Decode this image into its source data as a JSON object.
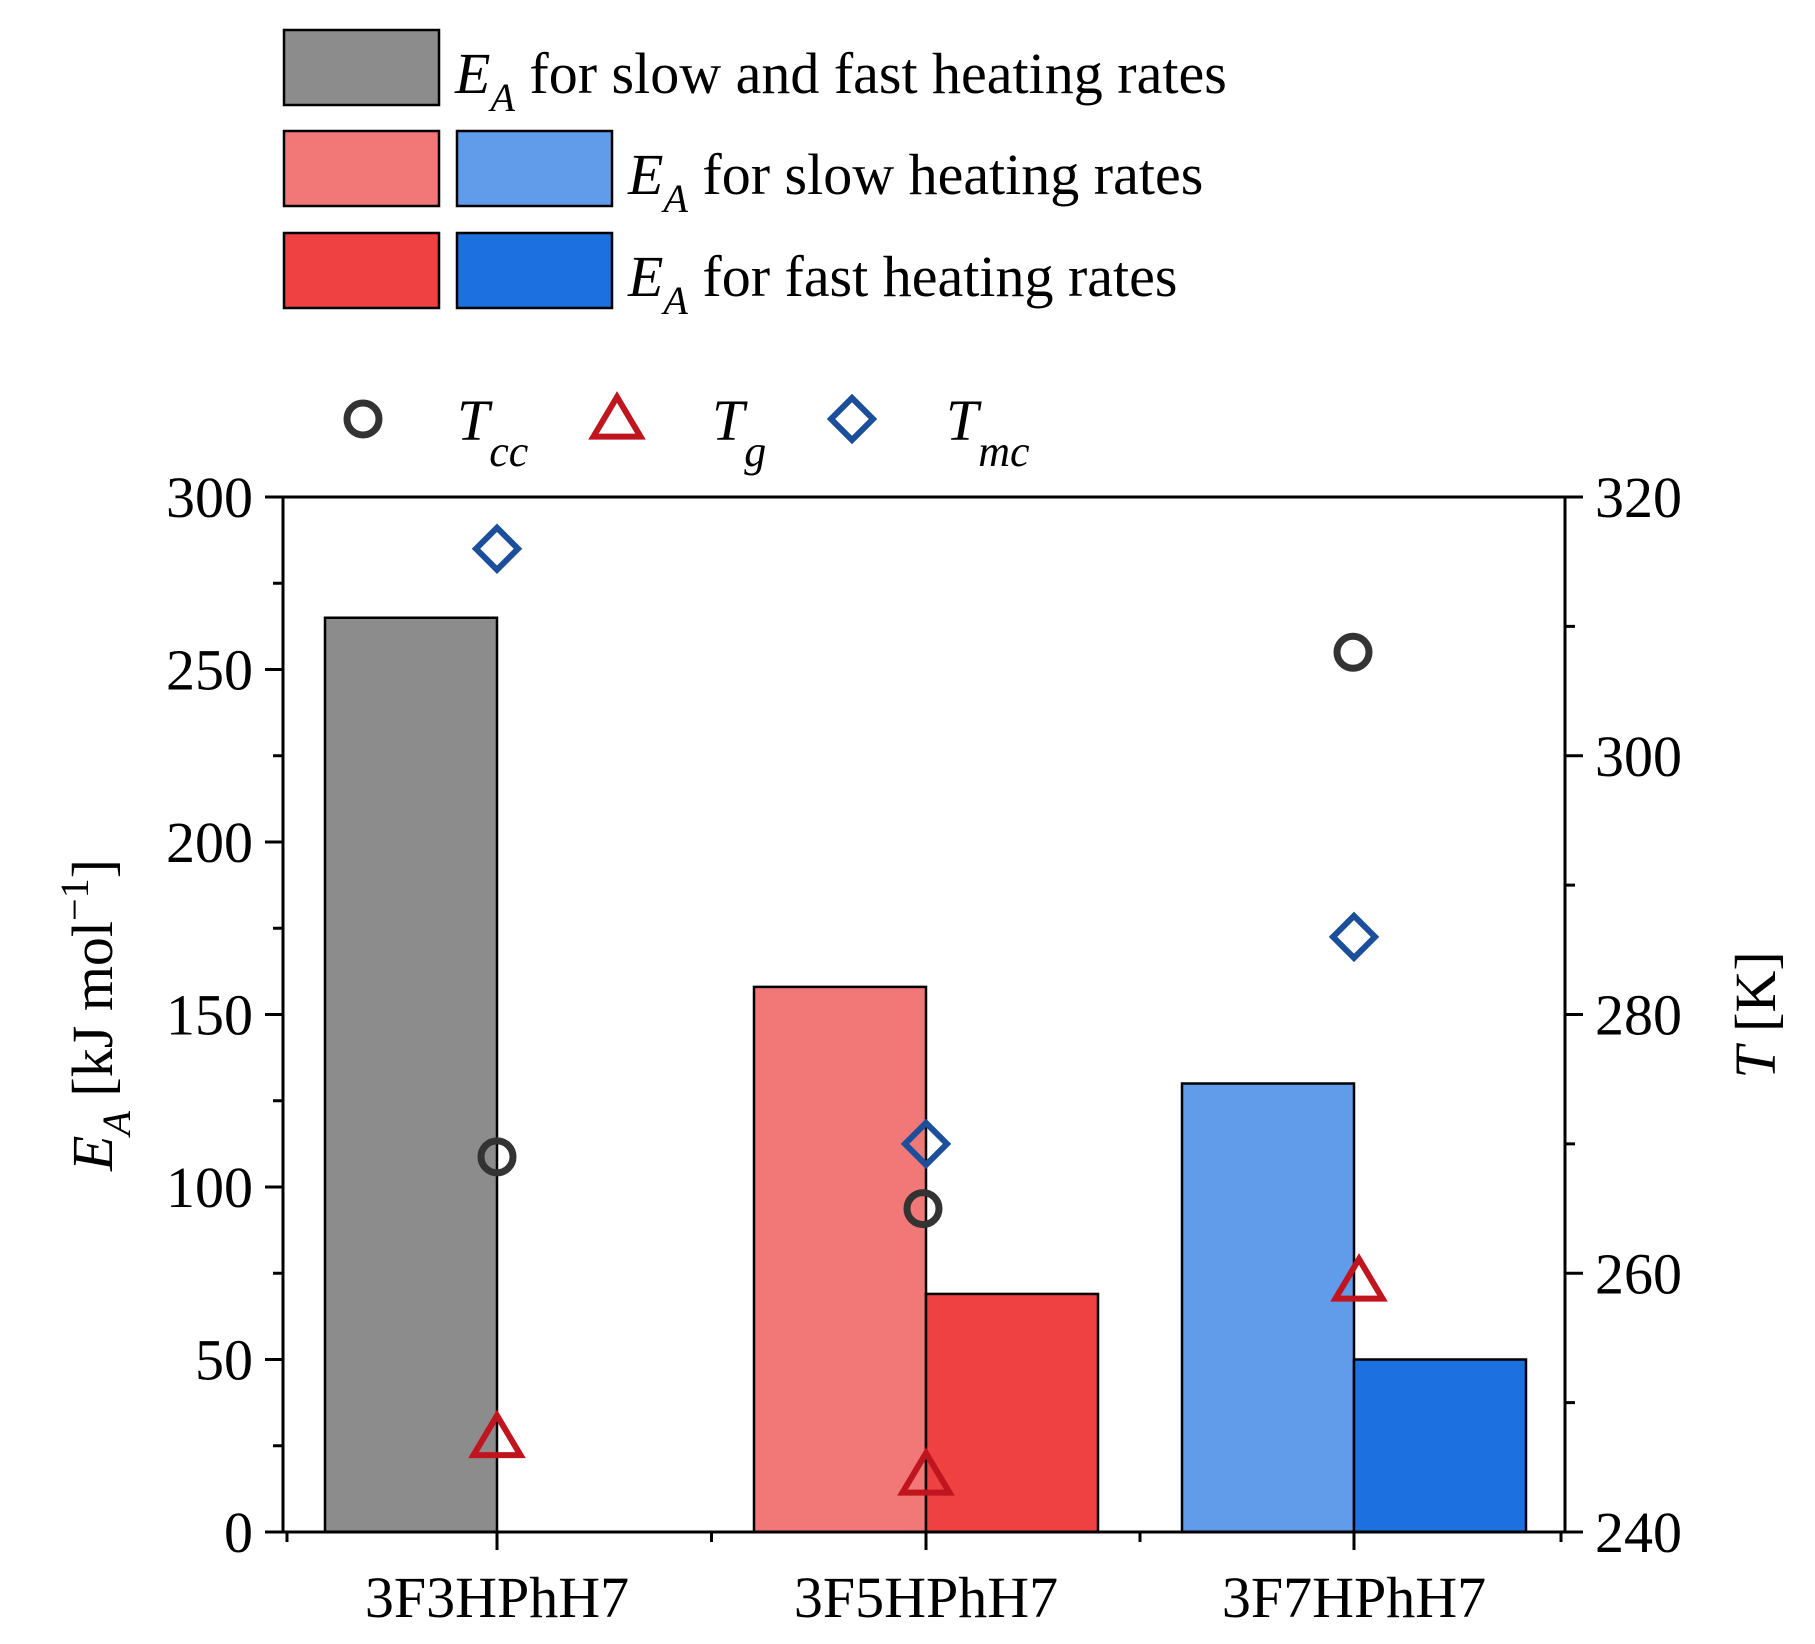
{
  "colors": {
    "gray": "#8c8c8c",
    "red_light": "#f27777",
    "red_dark": "#ef4141",
    "blue_light": "#619cea",
    "blue_dark": "#1c70df",
    "tcc_marker": "#333333",
    "tg_marker": "#c0141e",
    "tmc_marker": "#1b4f9c"
  },
  "legend_bars": [
    {
      "sym": "E",
      "sub": "A",
      "text": " for slow and fast heating rates"
    },
    {
      "sym": "E",
      "sub": "A",
      "text": " for slow heating rates"
    },
    {
      "sym": "E",
      "sub": "A",
      "text": " for fast heating rates"
    }
  ],
  "legend_markers": [
    {
      "sym": "T",
      "sub": "cc"
    },
    {
      "sym": "T",
      "sub": "g"
    },
    {
      "sym": "T",
      "sub": "mc"
    }
  ],
  "chart_data": {
    "type": "bar",
    "categories": [
      "3F3HPhH7",
      "3F5HPhH7",
      "3F7HPhH7"
    ],
    "left_axis": {
      "label_sym": "E",
      "label_sub": "A",
      "label_text": " [kJ mol",
      "label_sup": "−1",
      "label_end": "]",
      "ylim": [
        0,
        300
      ],
      "ticks": [
        0,
        50,
        100,
        150,
        200,
        250,
        300
      ]
    },
    "right_axis": {
      "label_sym": "T",
      "label_text": " [K]",
      "ylim": [
        240,
        320
      ],
      "ticks": [
        240,
        260,
        280,
        300,
        320
      ]
    },
    "bars": [
      {
        "category": "3F3HPhH7",
        "series": "EA for slow and fast heating rates",
        "value": 265,
        "color": "#8c8c8c"
      },
      {
        "category": "3F5HPhH7",
        "series": "EA for slow heating rates",
        "value": 158,
        "color": "#f27777"
      },
      {
        "category": "3F5HPhH7",
        "series": "EA for fast heating rates",
        "value": 69,
        "color": "#ef4141"
      },
      {
        "category": "3F7HPhH7",
        "series": "EA for slow heating rates",
        "value": 130,
        "color": "#619cea"
      },
      {
        "category": "3F7HPhH7",
        "series": "EA for fast heating rates",
        "value": 50,
        "color": "#1c70df"
      }
    ],
    "scatter": [
      {
        "name": "Tcc",
        "marker": "circle",
        "values": [
          269.0,
          265.0,
          308.0
        ]
      },
      {
        "name": "Tg",
        "marker": "triangle",
        "values": [
          247.3,
          244.4,
          259.4
        ]
      },
      {
        "name": "Tmc",
        "marker": "diamond",
        "values": [
          316.0,
          270.0,
          286.0
        ]
      }
    ]
  }
}
